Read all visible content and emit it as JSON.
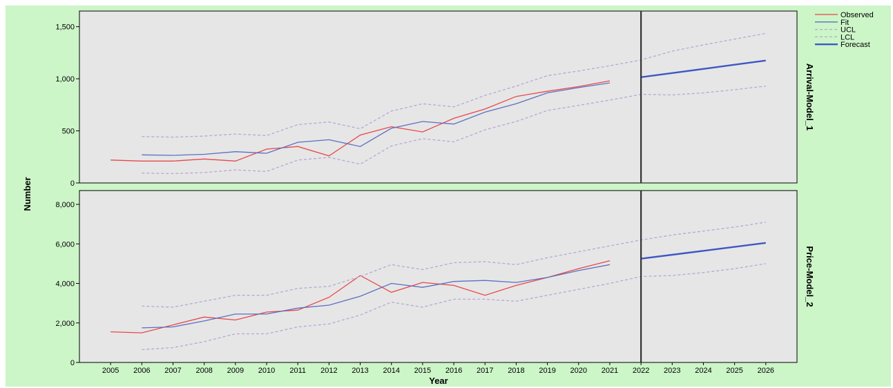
{
  "chart_data": {
    "type": "line",
    "xlabel": "Year",
    "ylabel": "Number",
    "x": [
      2005,
      2006,
      2007,
      2008,
      2009,
      2010,
      2011,
      2012,
      2013,
      2014,
      2015,
      2016,
      2017,
      2018,
      2019,
      2020,
      2021,
      2022,
      2023,
      2024,
      2025,
      2026
    ],
    "xlim": [
      2004,
      2027
    ],
    "forecast_start": 2022,
    "legend": {
      "placement": "top-right",
      "entries": [
        {
          "label": "Observed",
          "color": "#e8464a",
          "style": "solid"
        },
        {
          "label": "Fit",
          "color": "#5a6fc2",
          "style": "solid"
        },
        {
          "label": "UCL",
          "color": "#b9a5d6",
          "style": "dashed"
        },
        {
          "label": "LCL",
          "color": "#b9a5d6",
          "style": "dashed"
        },
        {
          "label": "Forecast",
          "color": "#3f57c4",
          "style": "solid-thick"
        }
      ]
    },
    "panels": [
      {
        "label": "Arrival-Model_1",
        "ylim": [
          0,
          1650
        ],
        "yticks": [
          0,
          500,
          1000,
          1500
        ],
        "ytick_labels": [
          "0",
          "500",
          "1,000",
          "1,500"
        ],
        "series": [
          {
            "name": "Observed",
            "x": [
              2005,
              2006,
              2007,
              2008,
              2009,
              2010,
              2011,
              2012,
              2013,
              2014,
              2015,
              2016,
              2017,
              2018,
              2019,
              2020,
              2021
            ],
            "values": [
              220,
              210,
              210,
              230,
              210,
              325,
              350,
              260,
              460,
              540,
              490,
              620,
              710,
              830,
              880,
              925,
              980
            ]
          },
          {
            "name": "Fit",
            "x": [
              2006,
              2007,
              2008,
              2009,
              2010,
              2011,
              2012,
              2013,
              2014,
              2015,
              2016,
              2017,
              2018,
              2019,
              2020,
              2021
            ],
            "values": [
              270,
              265,
              275,
              300,
              285,
              390,
              415,
              350,
              525,
              590,
              565,
              680,
              760,
              865,
              915,
              960
            ]
          },
          {
            "name": "UCL",
            "x": [
              2006,
              2007,
              2008,
              2009,
              2010,
              2011,
              2012,
              2013,
              2014,
              2015,
              2016,
              2017,
              2018,
              2019,
              2020,
              2021,
              2022,
              2023,
              2024,
              2025,
              2026
            ],
            "values": [
              445,
              440,
              450,
              470,
              455,
              560,
              585,
              520,
              690,
              760,
              730,
              840,
              930,
              1030,
              1075,
              1125,
              1180,
              1265,
              1325,
              1380,
              1435
            ]
          },
          {
            "name": "LCL",
            "x": [
              2006,
              2007,
              2008,
              2009,
              2010,
              2011,
              2012,
              2013,
              2014,
              2015,
              2016,
              2017,
              2018,
              2019,
              2020,
              2021,
              2022,
              2023,
              2024,
              2025,
              2026
            ],
            "values": [
              95,
              90,
              100,
              125,
              110,
              220,
              245,
              180,
              355,
              425,
              395,
              510,
              590,
              695,
              745,
              795,
              850,
              845,
              865,
              895,
              930
            ]
          },
          {
            "name": "Forecast",
            "x": [
              2022,
              2023,
              2024,
              2025,
              2026
            ],
            "values": [
              1015,
              1055,
              1095,
              1135,
              1175
            ]
          }
        ]
      },
      {
        "label": "Price-Model_2",
        "ylim": [
          0,
          8700
        ],
        "yticks": [
          0,
          2000,
          4000,
          6000,
          8000
        ],
        "ytick_labels": [
          "0",
          "2,000",
          "4,000",
          "6,000",
          "8,000"
        ],
        "series": [
          {
            "name": "Observed",
            "x": [
              2005,
              2006,
              2007,
              2008,
              2009,
              2010,
              2011,
              2012,
              2013,
              2014,
              2015,
              2016,
              2017,
              2018,
              2019,
              2020,
              2021
            ],
            "values": [
              1550,
              1500,
              1900,
              2300,
              2150,
              2550,
              2650,
              3300,
              4400,
              3550,
              4050,
              3900,
              3400,
              3900,
              4300,
              4750,
              5150
            ]
          },
          {
            "name": "Fit",
            "x": [
              2006,
              2007,
              2008,
              2009,
              2010,
              2011,
              2012,
              2013,
              2014,
              2015,
              2016,
              2017,
              2018,
              2019,
              2020,
              2021
            ],
            "values": [
              1750,
              1800,
              2100,
              2450,
              2450,
              2750,
              2900,
              3350,
              4000,
              3800,
              4100,
              4150,
              4050,
              4300,
              4650,
              4950
            ]
          },
          {
            "name": "UCL",
            "x": [
              2006,
              2007,
              2008,
              2009,
              2010,
              2011,
              2012,
              2013,
              2014,
              2015,
              2016,
              2017,
              2018,
              2019,
              2020,
              2021,
              2022,
              2023,
              2024,
              2025,
              2026
            ],
            "values": [
              2850,
              2800,
              3100,
              3400,
              3400,
              3750,
              3850,
              4350,
              4950,
              4700,
              5050,
              5100,
              4950,
              5300,
              5600,
              5900,
              6200,
              6450,
              6650,
              6850,
              7100
            ]
          },
          {
            "name": "LCL",
            "x": [
              2006,
              2007,
              2008,
              2009,
              2010,
              2011,
              2012,
              2013,
              2014,
              2015,
              2016,
              2017,
              2018,
              2019,
              2020,
              2021,
              2022,
              2023,
              2024,
              2025,
              2026
            ],
            "values": [
              650,
              750,
              1050,
              1450,
              1450,
              1800,
              1950,
              2400,
              3050,
              2800,
              3200,
              3200,
              3100,
              3400,
              3700,
              4000,
              4350,
              4400,
              4550,
              4750,
              5000
            ]
          },
          {
            "name": "Forecast",
            "x": [
              2022,
              2023,
              2024,
              2025,
              2026
            ],
            "values": [
              5250,
              5450,
              5650,
              5850,
              6050
            ]
          }
        ]
      }
    ]
  }
}
